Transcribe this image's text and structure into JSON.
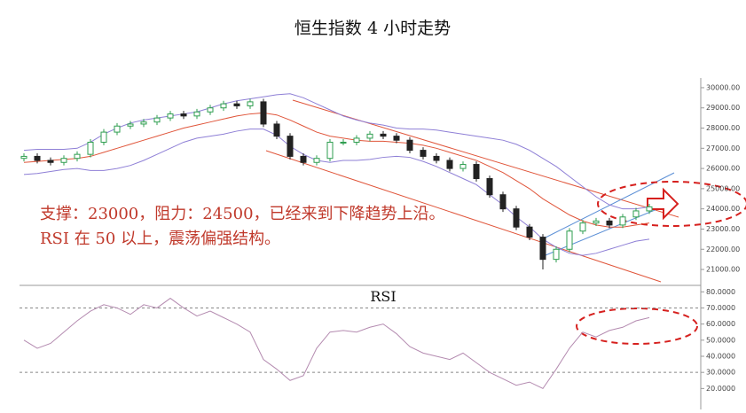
{
  "chart_data": [
    {
      "type": "candlestick",
      "title": "恒生指数 4 小时走势",
      "annotations": [
        "支撑：23000，阻力：24500，已经来到下降趋势上沿。",
        "RSI 在 50 以上，震荡偏强结构。"
      ],
      "open": [
        26500,
        26600,
        26400,
        26300,
        26500,
        26700,
        27300,
        27800,
        28100,
        28200,
        28300,
        28500,
        28700,
        28600,
        28800,
        29000,
        29200,
        29100,
        29300,
        28200,
        27600,
        26600,
        26300,
        26500,
        27300,
        27300,
        27500,
        27700,
        27600,
        27400,
        26900,
        26600,
        26400,
        26000,
        26200,
        25500,
        24700,
        24000,
        23100,
        22600,
        21500,
        22000,
        22900,
        23300,
        23400,
        23200,
        23600,
        23900
      ],
      "high": [
        26750,
        26750,
        26550,
        26650,
        26850,
        27450,
        27950,
        28250,
        28350,
        28450,
        28650,
        28850,
        28850,
        28950,
        29150,
        29350,
        29350,
        29450,
        29450,
        28350,
        27750,
        26750,
        26650,
        27450,
        27450,
        27650,
        27850,
        27850,
        27750,
        27550,
        27050,
        26750,
        26550,
        26350,
        26350,
        25650,
        24850,
        24150,
        23250,
        22750,
        22150,
        23050,
        23450,
        23550,
        23550,
        23750,
        24050,
        24250
      ],
      "low": [
        26350,
        26250,
        26150,
        26150,
        26350,
        26550,
        27150,
        27650,
        27950,
        28050,
        28150,
        28350,
        28450,
        28450,
        28650,
        28850,
        28950,
        28950,
        28050,
        27450,
        26450,
        26150,
        26150,
        26350,
        27150,
        27150,
        27350,
        27450,
        27250,
        26750,
        26450,
        26250,
        25850,
        25850,
        25350,
        24550,
        23850,
        22950,
        22450,
        21000,
        21350,
        21850,
        22750,
        23150,
        23050,
        23050,
        23450,
        23750
      ],
      "close": [
        26600,
        26400,
        26300,
        26500,
        26700,
        27300,
        27800,
        28100,
        28200,
        28300,
        28500,
        28700,
        28600,
        28800,
        29000,
        29200,
        29100,
        29300,
        28200,
        27600,
        26600,
        26300,
        26500,
        27300,
        27300,
        27500,
        27700,
        27600,
        27400,
        26900,
        26600,
        26400,
        26000,
        26200,
        25500,
        24700,
        24000,
        23100,
        22600,
        21500,
        22000,
        22900,
        23300,
        23400,
        23200,
        23600,
        23900,
        24100
      ],
      "up_color": "#2e9e4f",
      "down_color": "#222222",
      "overlays": [
        {
          "color": "#8e7fd6",
          "values": [
            26900,
            26950,
            26950,
            26950,
            27000,
            27300,
            27700,
            28000,
            28250,
            28400,
            28500,
            28600,
            28700,
            28800,
            29000,
            29200,
            29350,
            29450,
            29550,
            29650,
            29700,
            29500,
            29200,
            28900,
            28600,
            28400,
            28250,
            28150,
            28000,
            27950,
            27950,
            27900,
            27800,
            27700,
            27600,
            27500,
            27400,
            27200,
            26900,
            26500,
            26100,
            25600,
            25100,
            24600,
            24200,
            24000,
            24000,
            24100
          ]
        },
        {
          "color": "#e0553a",
          "values": [
            26300,
            26350,
            26400,
            26450,
            26500,
            26600,
            26800,
            27000,
            27200,
            27400,
            27600,
            27800,
            28000,
            28150,
            28300,
            28450,
            28600,
            28700,
            28750,
            28650,
            28400,
            28100,
            27800,
            27600,
            27500,
            27400,
            27350,
            27350,
            27300,
            27250,
            27150,
            27000,
            26800,
            26600,
            26400,
            26100,
            25800,
            25400,
            25000,
            24500,
            24100,
            23700,
            23400,
            23200,
            23100,
            23100,
            23200,
            23300
          ]
        },
        {
          "color": "#8e7fd6",
          "values": [
            25700,
            25750,
            25850,
            25950,
            26000,
            25900,
            25900,
            26000,
            26150,
            26400,
            26700,
            27000,
            27300,
            27500,
            27600,
            27700,
            27850,
            27950,
            27950,
            27650,
            27100,
            26700,
            26400,
            26300,
            26400,
            26400,
            26450,
            26550,
            26600,
            26550,
            26350,
            26100,
            25800,
            25500,
            25200,
            24700,
            24200,
            23600,
            23100,
            22500,
            22100,
            21800,
            21700,
            21800,
            22000,
            22200,
            22400,
            22500
          ]
        }
      ],
      "ylim": [
        20300,
        30480
      ],
      "yticks": [
        {
          "value": 21000,
          "label": "21000.00"
        },
        {
          "value": 22000,
          "label": "22000.00"
        },
        {
          "value": 23000,
          "label": "23000.00"
        },
        {
          "value": 24000,
          "label": "24000.00"
        },
        {
          "value": 25000,
          "label": "25000.00"
        },
        {
          "value": 26000,
          "label": "26000.00"
        },
        {
          "value": 27000,
          "label": "27000.00"
        },
        {
          "value": 28000,
          "label": "28000.00"
        },
        {
          "value": 29000,
          "label": "29000.00"
        },
        {
          "value": 30000,
          "label": "30000.00"
        }
      ]
    },
    {
      "type": "line",
      "title": "RSI",
      "color": "#b48bb0",
      "values": [
        50,
        45,
        48,
        55,
        62,
        68,
        72,
        70,
        66,
        72,
        70,
        76,
        70,
        65,
        68,
        64,
        60,
        55,
        38,
        32,
        25,
        28,
        45,
        55,
        56,
        55,
        58,
        60,
        54,
        46,
        42,
        40,
        38,
        42,
        36,
        30,
        26,
        22,
        24,
        20,
        32,
        45,
        55,
        52,
        56,
        58,
        62,
        64
      ],
      "ylim": [
        7,
        84
      ],
      "yticks": [
        {
          "value": 20,
          "label": "20.0000"
        },
        {
          "value": 30,
          "label": "30.0000"
        },
        {
          "value": 40,
          "label": "40.0000"
        },
        {
          "value": 50,
          "label": "50.0000"
        },
        {
          "value": 60,
          "label": "60.0000"
        },
        {
          "value": 70,
          "label": "70.0000"
        },
        {
          "value": 80,
          "label": "80.0000"
        }
      ],
      "ref_lines": [
        70,
        30
      ]
    }
  ]
}
